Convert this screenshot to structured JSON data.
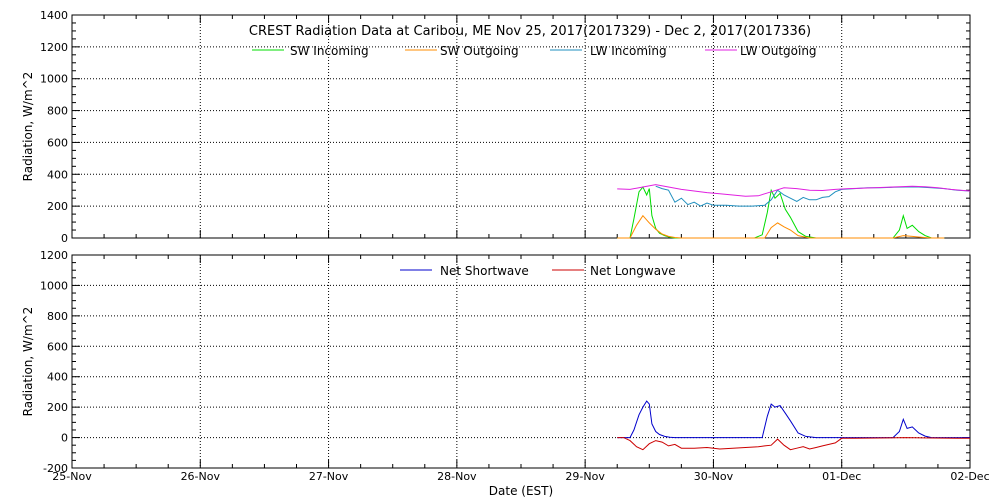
{
  "chart_data": [
    {
      "type": "line",
      "title": "CREST Radiation Data at Caribou, ME   Nov 25, 2017(2017329) - Dec  2, 2017(2017336)",
      "xlabel": "",
      "ylabel": "Radiation, W/m^2",
      "ylim": [
        0,
        1400
      ],
      "yticks": [
        "0",
        "200",
        "400",
        "600",
        "800",
        "1000",
        "1200",
        "1400"
      ],
      "xlim_days": [
        0,
        7
      ],
      "grid": true,
      "legend_placement": "top",
      "series": [
        {
          "name": "SW Incoming",
          "color": "#00dd00",
          "x": [
            4.25,
            4.3,
            4.35,
            4.38,
            4.42,
            4.45,
            4.48,
            4.5,
            4.52,
            4.55,
            4.58,
            4.62,
            4.66,
            4.7,
            4.75,
            5.25,
            5.32,
            5.38,
            5.42,
            5.45,
            5.48,
            5.52,
            5.56,
            5.6,
            5.66,
            5.72,
            5.8,
            6.25,
            6.32,
            6.4,
            6.45,
            6.48,
            6.51,
            6.55,
            6.6,
            6.65,
            6.7,
            6.8
          ],
          "y": [
            0,
            0,
            0,
            120,
            290,
            320,
            270,
            310,
            140,
            60,
            30,
            15,
            5,
            0,
            0,
            0,
            0,
            20,
            160,
            300,
            250,
            280,
            180,
            130,
            40,
            10,
            0,
            0,
            0,
            0,
            50,
            140,
            60,
            80,
            40,
            15,
            0,
            0
          ]
        },
        {
          "name": "SW Outgoing",
          "color": "#ff8c00",
          "x": [
            4.25,
            4.35,
            4.4,
            4.45,
            4.5,
            4.55,
            4.6,
            4.65,
            4.7,
            4.75,
            5.25,
            5.4,
            5.45,
            5.5,
            5.55,
            5.6,
            5.66,
            5.75,
            6.25,
            6.4,
            6.48,
            6.55,
            6.62,
            6.7,
            6.8
          ],
          "y": [
            0,
            0,
            80,
            140,
            95,
            55,
            25,
            10,
            3,
            0,
            0,
            0,
            65,
            95,
            70,
            50,
            15,
            0,
            0,
            0,
            15,
            10,
            5,
            0,
            0
          ]
        },
        {
          "name": "LW Incoming",
          "color": "#1f8fbf",
          "x": [
            4.55,
            4.6,
            4.65,
            4.7,
            4.75,
            4.8,
            4.85,
            4.9,
            4.95,
            5.0,
            5.1,
            5.2,
            5.3,
            5.4,
            5.45,
            5.5,
            5.55,
            5.6,
            5.65,
            5.7,
            5.75,
            5.8,
            5.85,
            5.9,
            5.95,
            6.0,
            6.1,
            6.2,
            6.3,
            6.4,
            6.5,
            6.6,
            6.7,
            6.8,
            6.9,
            7.0
          ],
          "y": [
            325,
            310,
            300,
            225,
            250,
            210,
            225,
            200,
            220,
            205,
            205,
            200,
            200,
            205,
            240,
            300,
            270,
            250,
            230,
            255,
            240,
            240,
            255,
            260,
            290,
            305,
            310,
            315,
            315,
            318,
            320,
            320,
            315,
            310,
            300,
            295
          ]
        },
        {
          "name": "LW Outgoing",
          "color": "#e020e0",
          "x": [
            4.25,
            4.35,
            4.45,
            4.55,
            4.65,
            4.75,
            4.85,
            4.95,
            5.05,
            5.15,
            5.25,
            5.35,
            5.45,
            5.55,
            5.65,
            5.75,
            5.85,
            5.95,
            6.05,
            6.15,
            6.25,
            6.35,
            6.45,
            6.55,
            6.65,
            6.75,
            6.85,
            6.95,
            7.0
          ],
          "y": [
            308,
            305,
            320,
            335,
            320,
            305,
            295,
            285,
            278,
            270,
            262,
            265,
            290,
            315,
            310,
            300,
            298,
            305,
            310,
            312,
            315,
            318,
            322,
            325,
            322,
            315,
            305,
            298,
            295
          ]
        }
      ]
    },
    {
      "type": "line",
      "title": "",
      "xlabel": "Date (EST)",
      "ylabel": "Radiation, W/m^2",
      "ylim": [
        -200,
        1200
      ],
      "yticks": [
        "-200",
        "0",
        "200",
        "400",
        "600",
        "800",
        "1000",
        "1200"
      ],
      "xlim_days": [
        0,
        7
      ],
      "grid": true,
      "legend_placement": "top",
      "categories": [
        "25-Nov",
        "26-Nov",
        "27-Nov",
        "28-Nov",
        "29-Nov",
        "30-Nov",
        "01-Dec",
        "02-Dec"
      ],
      "series": [
        {
          "name": "Net Shortwave",
          "color": "#0000cc",
          "x": [
            4.25,
            4.35,
            4.38,
            4.42,
            4.45,
            4.48,
            4.5,
            4.52,
            4.55,
            4.58,
            4.62,
            4.66,
            4.7,
            4.75,
            5.25,
            5.38,
            5.42,
            5.45,
            5.48,
            5.52,
            5.56,
            5.6,
            5.66,
            5.72,
            5.8,
            6.25,
            6.4,
            6.45,
            6.48,
            6.51,
            6.55,
            6.6,
            6.65,
            6.7,
            6.8,
            7.0
          ],
          "y": [
            0,
            0,
            50,
            150,
            200,
            240,
            220,
            90,
            40,
            20,
            8,
            2,
            0,
            0,
            0,
            0,
            140,
            220,
            200,
            210,
            160,
            110,
            30,
            8,
            0,
            0,
            0,
            40,
            120,
            60,
            70,
            30,
            10,
            0,
            0,
            0
          ]
        },
        {
          "name": "Net Longwave",
          "color": "#cc0000",
          "x": [
            4.25,
            4.3,
            4.35,
            4.4,
            4.45,
            4.5,
            4.55,
            4.6,
            4.65,
            4.7,
            4.75,
            4.85,
            4.95,
            5.05,
            5.15,
            5.25,
            5.35,
            5.4,
            5.45,
            5.5,
            5.55,
            5.6,
            5.65,
            5.7,
            5.75,
            5.8,
            5.85,
            5.9,
            5.95,
            6.0,
            6.1,
            6.3,
            6.5,
            6.7,
            6.9,
            7.0
          ],
          "y": [
            0,
            0,
            -20,
            -60,
            -80,
            -40,
            -20,
            -30,
            -55,
            -45,
            -70,
            -70,
            -65,
            -75,
            -70,
            -65,
            -60,
            -55,
            -50,
            -10,
            -50,
            -80,
            -70,
            -60,
            -75,
            -65,
            -55,
            -45,
            -35,
            -5,
            -5,
            -3,
            0,
            -3,
            -5,
            -5
          ]
        }
      ]
    }
  ]
}
